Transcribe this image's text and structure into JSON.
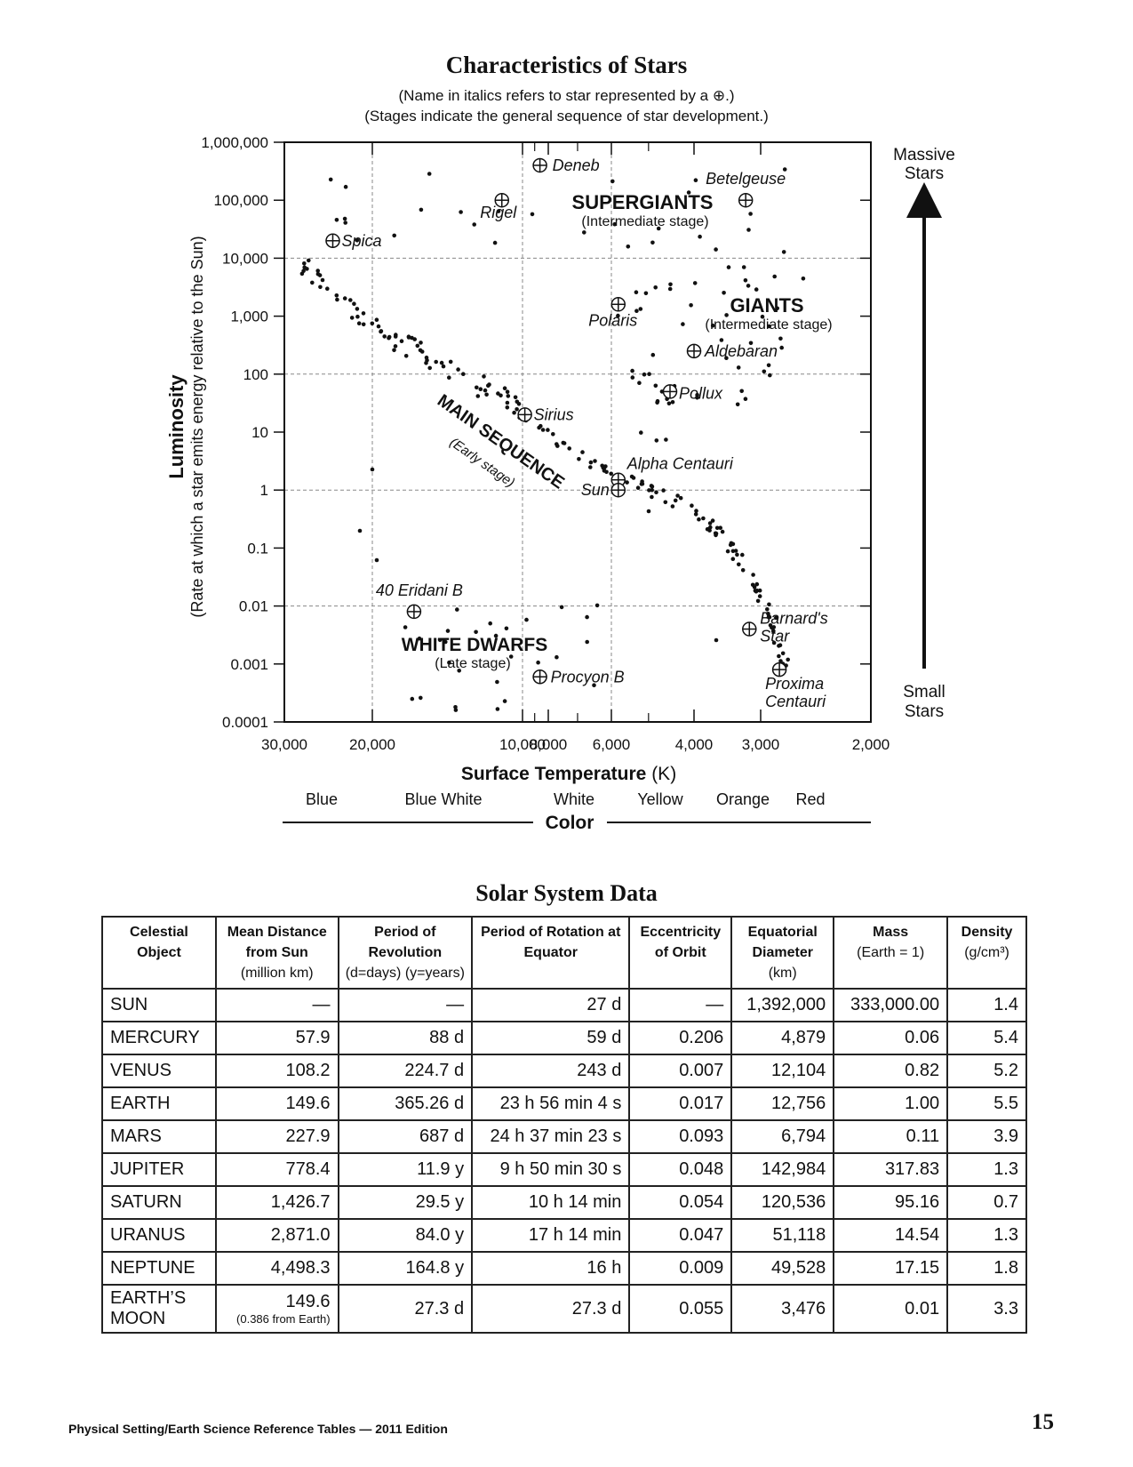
{
  "chart": {
    "title": "Characteristics of Stars",
    "subtitle_1": "(Name in italics refers to star represented by a ⊕.)",
    "subtitle_2": "(Stages indicate the general sequence of star development.)",
    "y_label_main": "Luminosity",
    "y_label_sub": "(Rate at which a star emits energy relative to the Sun)",
    "x_label_main": "Surface Temperature",
    "x_label_unit": "(K)",
    "y_ticks": [
      "1,000,000",
      "100,000",
      "10,000",
      "1,000",
      "100",
      "10",
      "1",
      "0.1",
      "0.01",
      "0.001",
      "0.0001"
    ],
    "x_ticks": [
      "30,000",
      "20,000",
      "10,000",
      "8,000",
      "6,000",
      "4,000",
      "3,000",
      "2,000"
    ],
    "colors": [
      "Blue",
      "Blue White",
      "White",
      "Yellow",
      "Orange",
      "Red"
    ],
    "color_axis_label": "Color",
    "arrow_top_label_1": "Massive",
    "arrow_top_label_2": "Stars",
    "arrow_bottom_label_1": "Small",
    "arrow_bottom_label_2": "Stars",
    "groups": {
      "supergiants": "SUPERGIANTS",
      "supergiants_stage": "(Intermediate stage)",
      "giants": "GIANTS",
      "giants_stage": "(Intermediate stage)",
      "main_sequence": "MAIN SEQUENCE",
      "main_sequence_stage": "(Early stage)",
      "white_dwarfs": "WHITE DWARFS",
      "white_dwarfs_stage": "(Late stage)"
    }
  },
  "chart_data": {
    "type": "scatter",
    "title": "Characteristics of Stars",
    "xlabel": "Surface Temperature (K)",
    "ylabel": "Luminosity",
    "x_scale": "log",
    "y_scale": "log",
    "xlim": [
      30000,
      2000
    ],
    "ylim": [
      0.0001,
      1000000
    ],
    "grid": "dashed",
    "named_stars": [
      {
        "name": "Deneb",
        "temp": 8600,
        "lum": 400000
      },
      {
        "name": "Betelgeuse",
        "temp": 3200,
        "lum": 100000
      },
      {
        "name": "Rigel",
        "temp": 11000,
        "lum": 100000
      },
      {
        "name": "Spica",
        "temp": 24000,
        "lum": 20000
      },
      {
        "name": "Polaris",
        "temp": 5800,
        "lum": 1600
      },
      {
        "name": "Aldebaran",
        "temp": 4000,
        "lum": 250
      },
      {
        "name": "Pollux",
        "temp": 4500,
        "lum": 50
      },
      {
        "name": "Sirius",
        "temp": 9800,
        "lum": 20
      },
      {
        "name": "Alpha Centauri",
        "temp": 5800,
        "lum": 1.5
      },
      {
        "name": "Sun",
        "temp": 5800,
        "lum": 1
      },
      {
        "name": "40 Eridani B",
        "temp": 16500,
        "lum": 0.008
      },
      {
        "name": "Barnard's Star",
        "temp": 3150,
        "lum": 0.004
      },
      {
        "name": "Procyon B",
        "temp": 8600,
        "lum": 0.0006
      },
      {
        "name": "Proxima Centauri",
        "temp": 2800,
        "lum": 0.0008
      }
    ]
  },
  "table": {
    "title": "Solar System Data",
    "headers": [
      {
        "main": "Celestial Object",
        "sub": ""
      },
      {
        "main": "Mean Distance from Sun",
        "sub": "(million km)"
      },
      {
        "main": "Period of Revolution",
        "sub": "(d=days)  (y=years)"
      },
      {
        "main": "Period of Rotation at Equator",
        "sub": ""
      },
      {
        "main": "Eccentricity of Orbit",
        "sub": ""
      },
      {
        "main": "Equatorial Diameter",
        "sub": "(km)"
      },
      {
        "main": "Mass",
        "sub": "(Earth = 1)"
      },
      {
        "main": "Density",
        "sub": "(g/cm³)"
      }
    ],
    "rows": [
      [
        "SUN",
        "—",
        "—",
        "27 d",
        "—",
        "1,392,000",
        "333,000.00",
        "1.4"
      ],
      [
        "MERCURY",
        "57.9",
        "88 d",
        "59 d",
        "0.206",
        "4,879",
        "0.06",
        "5.4"
      ],
      [
        "VENUS",
        "108.2",
        "224.7 d",
        "243 d",
        "0.007",
        "12,104",
        "0.82",
        "5.2"
      ],
      [
        "EARTH",
        "149.6",
        "365.26 d",
        "23 h 56 min 4 s",
        "0.017",
        "12,756",
        "1.00",
        "5.5"
      ],
      [
        "MARS",
        "227.9",
        "687 d",
        "24 h 37 min 23 s",
        "0.093",
        "6,794",
        "0.11",
        "3.9"
      ],
      [
        "JUPITER",
        "778.4",
        "11.9 y",
        "9 h 50 min 30 s",
        "0.048",
        "142,984",
        "317.83",
        "1.3"
      ],
      [
        "SATURN",
        "1,426.7",
        "29.5 y",
        "10 h 14 min",
        "0.054",
        "120,536",
        "95.16",
        "0.7"
      ],
      [
        "URANUS",
        "2,871.0",
        "84.0 y",
        "17 h 14 min",
        "0.047",
        "51,118",
        "14.54",
        "1.3"
      ],
      [
        "NEPTUNE",
        "4,498.3",
        "164.8 y",
        "16 h",
        "0.009",
        "49,528",
        "17.15",
        "1.8"
      ],
      [
        "EARTH’S MOON",
        "149.6",
        "27.3 d",
        "27.3 d",
        "0.055",
        "3,476",
        "0.01",
        "3.3"
      ]
    ],
    "moon_distance_note": "(0.386 from Earth)"
  },
  "footer": {
    "text": "Physical Setting/Earth Science Reference Tables — 2011 Edition",
    "page_number": "15"
  }
}
